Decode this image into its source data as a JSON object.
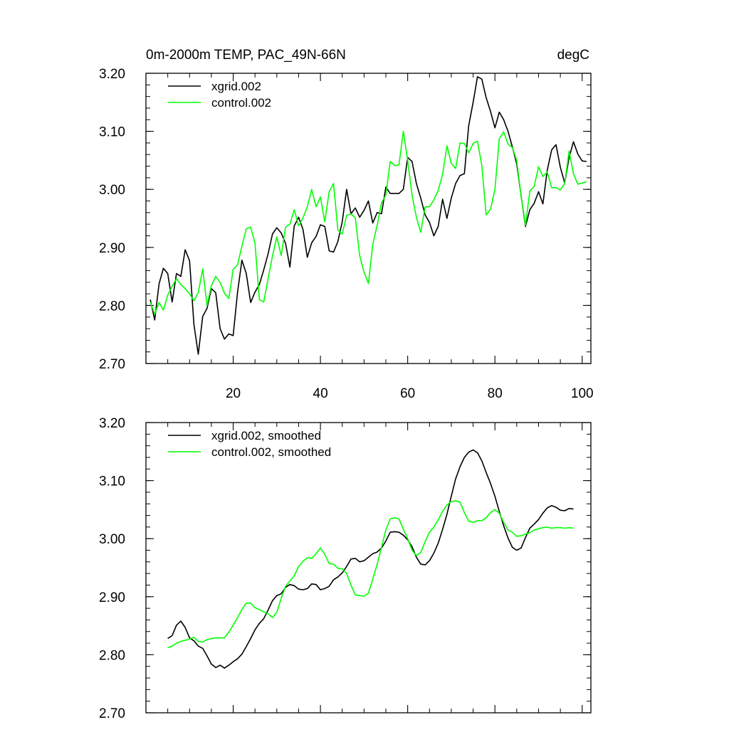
{
  "chart_data": [
    {
      "type": "line",
      "title": "0m-2000m TEMP, PAC_49N-66N",
      "units": "degC",
      "xlabel": "",
      "ylabel": "",
      "xlim": [
        0,
        102
      ],
      "ylim": [
        2.7,
        3.2
      ],
      "x_ticks": [
        20,
        40,
        60,
        80,
        100
      ],
      "x_tick_labels": [
        "20",
        "40",
        "60",
        "80",
        "100"
      ],
      "y_ticks": [
        2.7,
        2.8,
        2.9,
        3.0,
        3.1,
        3.2
      ],
      "y_tick_labels": [
        "2.70",
        "2.80",
        "2.90",
        "3.00",
        "3.10",
        "3.20"
      ],
      "x": [
        1,
        2,
        3,
        4,
        5,
        6,
        7,
        8,
        9,
        10,
        11,
        12,
        13,
        14,
        15,
        16,
        17,
        18,
        19,
        20,
        21,
        22,
        23,
        24,
        25,
        26,
        27,
        28,
        29,
        30,
        31,
        32,
        33,
        34,
        35,
        36,
        37,
        38,
        39,
        40,
        41,
        42,
        43,
        44,
        45,
        46,
        47,
        48,
        49,
        50,
        51,
        52,
        53,
        54,
        55,
        56,
        57,
        58,
        59,
        60,
        61,
        62,
        63,
        64,
        65,
        66,
        67,
        68,
        69,
        70,
        71,
        72,
        73,
        74,
        75,
        76,
        77,
        78,
        79,
        80,
        81,
        82,
        83,
        84,
        85,
        86,
        87,
        88,
        89,
        90,
        91,
        92,
        93,
        94,
        95,
        96,
        97,
        98,
        99,
        100,
        101
      ],
      "legend": [
        "xgrid.002",
        "control.002"
      ],
      "legend_position": "top-left",
      "series": [
        {
          "name": "xgrid.002",
          "color": "#000000",
          "values": [
            2.81,
            2.775,
            2.837,
            2.864,
            2.855,
            2.806,
            2.855,
            2.85,
            2.896,
            2.877,
            2.767,
            2.716,
            2.781,
            2.795,
            2.829,
            2.822,
            2.76,
            2.742,
            2.751,
            2.748,
            2.823,
            2.878,
            2.855,
            2.805,
            2.823,
            2.836,
            2.861,
            2.889,
            2.923,
            2.934,
            2.925,
            2.907,
            2.866,
            2.937,
            2.952,
            2.931,
            2.883,
            2.908,
            2.919,
            2.939,
            2.936,
            2.894,
            2.892,
            2.91,
            2.944,
            3.0,
            2.958,
            2.968,
            2.952,
            2.964,
            2.98,
            2.942,
            2.96,
            2.958,
            3.004,
            2.993,
            2.993,
            2.993,
            3.0,
            3.055,
            3.048,
            3.01,
            2.985,
            2.956,
            2.943,
            2.92,
            2.936,
            2.983,
            2.95,
            2.985,
            3.01,
            3.024,
            3.027,
            3.11,
            3.15,
            3.194,
            3.19,
            3.158,
            3.134,
            3.106,
            3.133,
            3.12,
            3.1,
            3.073,
            3.044,
            2.989,
            2.936,
            2.965,
            2.976,
            2.996,
            2.975,
            3.033,
            3.068,
            3.077,
            3.038,
            3.011,
            3.055,
            3.082,
            3.061,
            3.049,
            3.048
          ]
        },
        {
          "name": "control.002",
          "color": "#00ff00",
          "values": [
            2.806,
            2.785,
            2.805,
            2.792,
            2.818,
            2.833,
            2.846,
            2.836,
            2.829,
            2.82,
            2.808,
            2.822,
            2.863,
            2.8,
            2.834,
            2.85,
            2.84,
            2.821,
            2.812,
            2.862,
            2.87,
            2.902,
            2.932,
            2.935,
            2.907,
            2.81,
            2.806,
            2.846,
            2.885,
            2.918,
            2.886,
            2.935,
            2.94,
            2.965,
            2.937,
            2.951,
            2.97,
            3.0,
            2.97,
            2.987,
            2.944,
            2.996,
            3.01,
            2.93,
            2.923,
            2.955,
            2.958,
            2.951,
            2.886,
            2.857,
            2.838,
            2.905,
            2.938,
            2.977,
            2.99,
            3.048,
            3.041,
            3.042,
            3.1,
            3.05,
            2.99,
            2.952,
            2.926,
            2.97,
            2.97,
            2.982,
            2.998,
            3.026,
            3.075,
            3.045,
            3.036,
            3.08,
            3.079,
            3.063,
            3.079,
            3.083,
            3.041,
            2.956,
            2.966,
            3.0,
            3.087,
            3.099,
            3.078,
            3.072,
            3.05,
            2.988,
            2.938,
            2.997,
            3.005,
            3.039,
            3.022,
            3.03,
            3.003,
            3.003,
            2.999,
            3.01,
            3.066,
            3.027,
            3.009,
            3.011,
            3.013
          ]
        }
      ]
    },
    {
      "type": "line",
      "title": "",
      "xlabel": "",
      "ylabel": "",
      "xlim": [
        0,
        102
      ],
      "ylim": [
        2.7,
        3.2
      ],
      "x_ticks": [
        20,
        40,
        60,
        80,
        100
      ],
      "x_tick_labels": [],
      "y_ticks": [
        2.7,
        2.8,
        2.9,
        3.0,
        3.1,
        3.2
      ],
      "y_tick_labels": [
        "2.70",
        "2.80",
        "2.90",
        "3.00",
        "3.10",
        "3.20"
      ],
      "x": [
        5,
        6,
        7,
        8,
        9,
        10,
        11,
        12,
        13,
        14,
        15,
        16,
        17,
        18,
        19,
        20,
        21,
        22,
        23,
        24,
        25,
        26,
        27,
        28,
        29,
        30,
        31,
        32,
        33,
        34,
        35,
        36,
        37,
        38,
        39,
        40,
        41,
        42,
        43,
        44,
        45,
        46,
        47,
        48,
        49,
        50,
        51,
        52,
        53,
        54,
        55,
        56,
        57,
        58,
        59,
        60,
        61,
        62,
        63,
        64,
        65,
        66,
        67,
        68,
        69,
        70,
        71,
        72,
        73,
        74,
        75,
        76,
        77,
        78,
        79,
        80,
        81,
        82,
        83,
        84,
        85,
        86,
        87,
        88,
        89,
        90,
        91,
        92,
        93,
        94,
        95,
        96,
        97,
        98
      ],
      "legend": [
        "xgrid.002, smoothed",
        "control.002, smoothed"
      ],
      "legend_position": "top-left",
      "series": [
        {
          "name": "xgrid.002, smoothed",
          "color": "#000000",
          "values": [
            2.828,
            2.833,
            2.851,
            2.858,
            2.847,
            2.829,
            2.824,
            2.815,
            2.811,
            2.798,
            2.784,
            2.778,
            2.782,
            2.777,
            2.782,
            2.788,
            2.793,
            2.801,
            2.814,
            2.828,
            2.843,
            2.854,
            2.862,
            2.877,
            2.893,
            2.902,
            2.905,
            2.916,
            2.921,
            2.919,
            2.913,
            2.912,
            2.914,
            2.922,
            2.921,
            2.912,
            2.914,
            2.918,
            2.929,
            2.934,
            2.941,
            2.952,
            2.965,
            2.966,
            2.96,
            2.962,
            2.968,
            2.974,
            2.977,
            2.984,
            2.996,
            3.011,
            3.012,
            3.011,
            3.006,
            2.998,
            2.986,
            2.968,
            2.956,
            2.955,
            2.962,
            2.975,
            2.992,
            3.016,
            3.042,
            3.073,
            3.103,
            3.124,
            3.14,
            3.149,
            3.153,
            3.148,
            3.134,
            3.114,
            3.095,
            3.073,
            3.047,
            3.022,
            3.001,
            2.985,
            2.98,
            2.984,
            3.002,
            3.018,
            3.025,
            3.033,
            3.044,
            3.053,
            3.057,
            3.054,
            3.049,
            3.048,
            3.052,
            3.051
          ]
        },
        {
          "name": "control.002, smoothed",
          "color": "#00ff00",
          "values": [
            2.812,
            2.815,
            2.82,
            2.823,
            2.825,
            2.827,
            2.83,
            2.823,
            2.822,
            2.826,
            2.828,
            2.829,
            2.829,
            2.829,
            2.839,
            2.851,
            2.864,
            2.878,
            2.889,
            2.889,
            2.881,
            2.878,
            2.874,
            2.871,
            2.864,
            2.873,
            2.897,
            2.918,
            2.927,
            2.936,
            2.952,
            2.961,
            2.967,
            2.966,
            2.974,
            2.984,
            2.973,
            2.957,
            2.956,
            2.949,
            2.948,
            2.94,
            2.92,
            2.903,
            2.902,
            2.901,
            2.906,
            2.93,
            2.956,
            2.985,
            3.015,
            3.034,
            3.036,
            3.034,
            3.017,
            3.0,
            2.98,
            2.971,
            2.976,
            2.995,
            3.011,
            3.02,
            3.032,
            3.047,
            3.058,
            3.064,
            3.065,
            3.063,
            3.045,
            3.03,
            3.028,
            3.031,
            3.031,
            3.036,
            3.045,
            3.05,
            3.044,
            3.028,
            3.015,
            3.011,
            3.004,
            3.005,
            3.008,
            3.01,
            3.015,
            3.017,
            3.019,
            3.02,
            3.018,
            3.019,
            3.019,
            3.018,
            3.019,
            3.018
          ]
        }
      ]
    }
  ]
}
